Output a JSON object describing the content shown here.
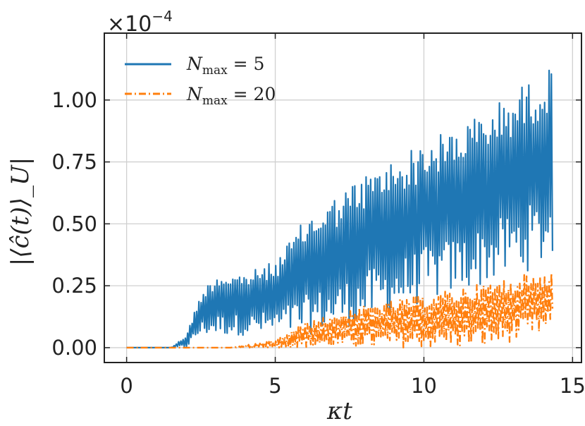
{
  "chart_data": {
    "type": "line",
    "title": "",
    "xlabel": "κt",
    "ylabel": "|⟨ĉ(t)⟩_U|",
    "offset_text": "×10^−4",
    "offset_base": "×10",
    "offset_exp": "−4",
    "xlim": [
      -0.75,
      15.3
    ],
    "ylim": [
      -0.06,
      1.27
    ],
    "x_ticks": [
      0,
      5,
      10,
      15
    ],
    "x_tick_labels": [
      "0",
      "5",
      "10",
      "15"
    ],
    "y_ticks": [
      0.0,
      0.25,
      0.5,
      0.75,
      1.0
    ],
    "y_tick_labels": [
      "0.00",
      "0.25",
      "0.50",
      "0.75",
      "1.00"
    ],
    "grid": true,
    "legend_position": "top-left",
    "colors": {
      "series1": "#1f77b4",
      "series2": "#ff7f0e",
      "grid": "#d0d0d0",
      "axis": "#222222"
    },
    "legend": [
      {
        "symbol": "N",
        "sub": "max",
        "rest": " = 5"
      },
      {
        "symbol": "N",
        "sub": "max",
        "rest": " = 20"
      }
    ],
    "series": [
      {
        "name": "N_max = 5",
        "line_style": "solid",
        "envelope_x": [
          0,
          1.5,
          2.0,
          2.5,
          3.0,
          4.0,
          5.0,
          6.0,
          8.0,
          10.0,
          12.0,
          14.0,
          14.35
        ],
        "upper": [
          0.0,
          0.0,
          0.05,
          0.22,
          0.3,
          0.3,
          0.35,
          0.52,
          0.7,
          0.83,
          0.95,
          1.12,
          1.13
        ],
        "lower": [
          0.0,
          0.0,
          0.0,
          0.05,
          0.05,
          0.05,
          0.05,
          0.05,
          0.1,
          0.18,
          0.25,
          0.33,
          0.35
        ]
      },
      {
        "name": "N_max = 20",
        "line_style": "dashdot",
        "envelope_x": [
          0,
          3.5,
          4.5,
          5.0,
          6.0,
          8.0,
          10.0,
          12.0,
          14.0,
          14.35
        ],
        "upper": [
          0.0,
          0.0,
          0.02,
          0.03,
          0.1,
          0.17,
          0.21,
          0.26,
          0.31,
          0.31
        ],
        "lower": [
          0.0,
          0.0,
          0.0,
          0.0,
          0.0,
          0.0,
          0.0,
          0.0,
          0.05,
          0.08
        ]
      }
    ]
  }
}
